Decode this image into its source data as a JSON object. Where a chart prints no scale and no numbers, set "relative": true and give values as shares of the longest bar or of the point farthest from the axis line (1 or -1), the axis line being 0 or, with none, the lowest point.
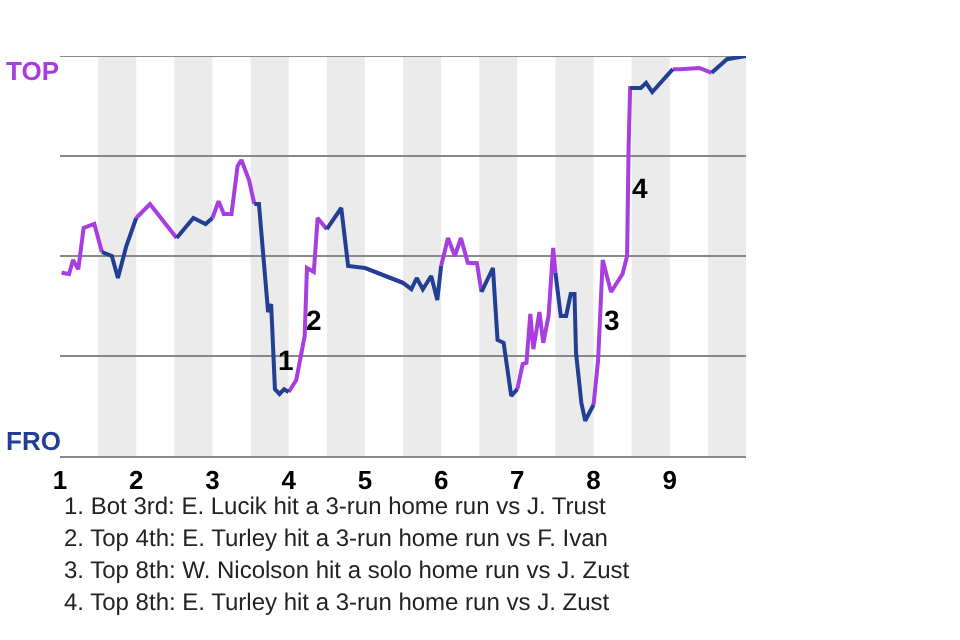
{
  "chart_data": {
    "type": "line",
    "relative": true,
    "x": [
      1.02,
      1.12,
      1.17,
      1.24,
      1.31,
      1.45,
      1.55,
      1.68,
      1.76,
      1.87,
      2.0,
      2.18,
      2.53,
      2.75,
      2.91,
      3.0,
      3.08,
      3.15,
      3.25,
      3.33,
      3.38,
      3.48,
      3.55,
      3.61,
      3.73,
      3.77,
      3.82,
      3.88,
      3.94,
      4.0,
      4.1,
      4.21,
      4.24,
      4.33,
      4.38,
      4.5,
      4.69,
      4.78,
      5.0,
      5.5,
      5.61,
      5.68,
      5.76,
      5.87,
      5.95,
      6.0,
      6.09,
      6.18,
      6.26,
      6.35,
      6.47,
      6.53,
      6.68,
      6.74,
      6.82,
      6.92,
      7.0,
      7.07,
      7.12,
      7.17,
      7.21,
      7.29,
      7.34,
      7.41,
      7.47,
      7.5,
      7.57,
      7.64,
      7.7,
      7.75,
      7.77,
      7.84,
      7.89,
      8.0,
      8.06,
      8.12,
      8.23,
      8.33,
      8.38,
      8.44,
      8.46,
      8.48,
      8.62,
      8.69,
      8.77,
      9.04,
      9.14,
      9.39,
      9.55,
      9.75,
      10.0
    ],
    "series": [
      {
        "color": "#a83de0",
        "values": [
          0.458,
          0.455,
          0.49,
          0.467,
          0.57,
          0.58,
          0.51,
          null,
          null,
          null,
          0.595,
          0.63,
          0.545,
          null,
          null,
          0.595,
          0.637,
          0.605,
          0.605,
          0.725,
          0.74,
          0.69,
          0.63,
          null,
          null,
          null,
          null,
          null,
          null,
          0.16,
          0.19,
          0.3,
          0.47,
          0.46,
          0.595,
          0.567,
          null,
          null,
          0.47,
          0.433,
          null,
          null,
          null,
          null,
          null,
          0.475,
          0.545,
          0.5,
          0.545,
          0.483,
          0.482,
          0.41,
          null,
          null,
          null,
          null,
          0.167,
          0.23,
          0.233,
          0.355,
          0.267,
          0.36,
          0.283,
          0.35,
          0.52,
          0.458,
          null,
          null,
          null,
          null,
          null,
          null,
          null,
          0.128,
          0.24,
          0.49,
          0.41,
          0.44,
          0.455,
          0.5,
          0.775,
          0.92,
          0.92,
          null,
          null,
          0.967,
          0.967,
          0.97,
          0.958,
          null,
          null
        ]
      },
      {
        "color": "#233f94",
        "values": [
          null,
          null,
          null,
          null,
          null,
          null,
          0.51,
          0.5,
          0.445,
          0.525,
          0.595,
          null,
          0.545,
          0.595,
          0.58,
          0.595,
          null,
          null,
          null,
          null,
          null,
          null,
          0.63,
          0.63,
          0.36,
          0.38,
          0.167,
          0.155,
          0.167,
          0.16,
          null,
          null,
          null,
          null,
          null,
          0.567,
          0.62,
          0.475,
          0.47,
          0.433,
          0.417,
          0.445,
          0.417,
          0.45,
          0.39,
          0.475,
          null,
          null,
          null,
          null,
          null,
          0.41,
          0.47,
          0.29,
          0.283,
          0.15,
          0.167,
          null,
          null,
          null,
          null,
          null,
          null,
          null,
          null,
          0.458,
          0.35,
          0.35,
          0.405,
          0.405,
          0.258,
          0.133,
          0.088,
          0.128,
          null,
          null,
          null,
          null,
          null,
          null,
          null,
          0.92,
          0.92,
          0.933,
          0.91,
          0.967,
          null,
          null,
          0.958,
          0.992,
          1.0
        ]
      }
    ],
    "xlim": [
      1,
      10
    ],
    "xticks": [
      1,
      2,
      3,
      4,
      5,
      6,
      7,
      8,
      9
    ],
    "marker": "none",
    "line_style": "solid",
    "ref_lines": [
      {
        "axis": "y",
        "value": 0.25,
        "label": null,
        "color": "#888888"
      },
      {
        "axis": "y",
        "value": 0.5,
        "label": null,
        "color": "#888888"
      },
      {
        "axis": "y",
        "value": 0.75,
        "label": null,
        "color": "#888888"
      },
      {
        "axis": "y",
        "value": 1,
        "label": null,
        "color": "#888888"
      }
    ],
    "bands": [
      {
        "axis": "x",
        "from": 1.5,
        "to": 2,
        "label": null,
        "color": "#ebebeb"
      },
      {
        "axis": "x",
        "from": 2.5,
        "to": 3,
        "label": null,
        "color": "#ebebeb"
      },
      {
        "axis": "x",
        "from": 3.5,
        "to": 4,
        "label": null,
        "color": "#ebebeb"
      },
      {
        "axis": "x",
        "from": 4.5,
        "to": 5,
        "label": null,
        "color": "#ebebeb"
      },
      {
        "axis": "x",
        "from": 5.5,
        "to": 6,
        "label": null,
        "color": "#ebebeb"
      },
      {
        "axis": "x",
        "from": 6.5,
        "to": 7,
        "label": null,
        "color": "#ebebeb"
      },
      {
        "axis": "x",
        "from": 7.5,
        "to": 8,
        "label": null,
        "color": "#ebebeb"
      },
      {
        "axis": "x",
        "from": 8.5,
        "to": 9,
        "label": null,
        "color": "#ebebeb"
      },
      {
        "axis": "x",
        "from": 9.5,
        "to": 10,
        "label": null,
        "color": "#ebebeb"
      }
    ],
    "annotations": [
      "TOP",
      "FRO",
      {
        "text": "1",
        "x": 3.96,
        "y": 0.24
      },
      {
        "text": "2",
        "x": 4.33,
        "y": 0.34
      },
      {
        "text": "3",
        "x": 8.23,
        "y": 0.34
      },
      {
        "text": "4",
        "x": 8.62,
        "y": 0.67
      },
      "1. Bot 3rd: E. Lucik hit a 3-run home run vs J. Trust",
      "2. Top 4th: E. Turley hit a 3-run home run vs F. Ivan",
      "3. Top 8th: W. Nicolson hit a solo home run vs J. Zust",
      "4. Top 8th: E. Turley hit a 3-run home run vs J. Zust"
    ]
  }
}
